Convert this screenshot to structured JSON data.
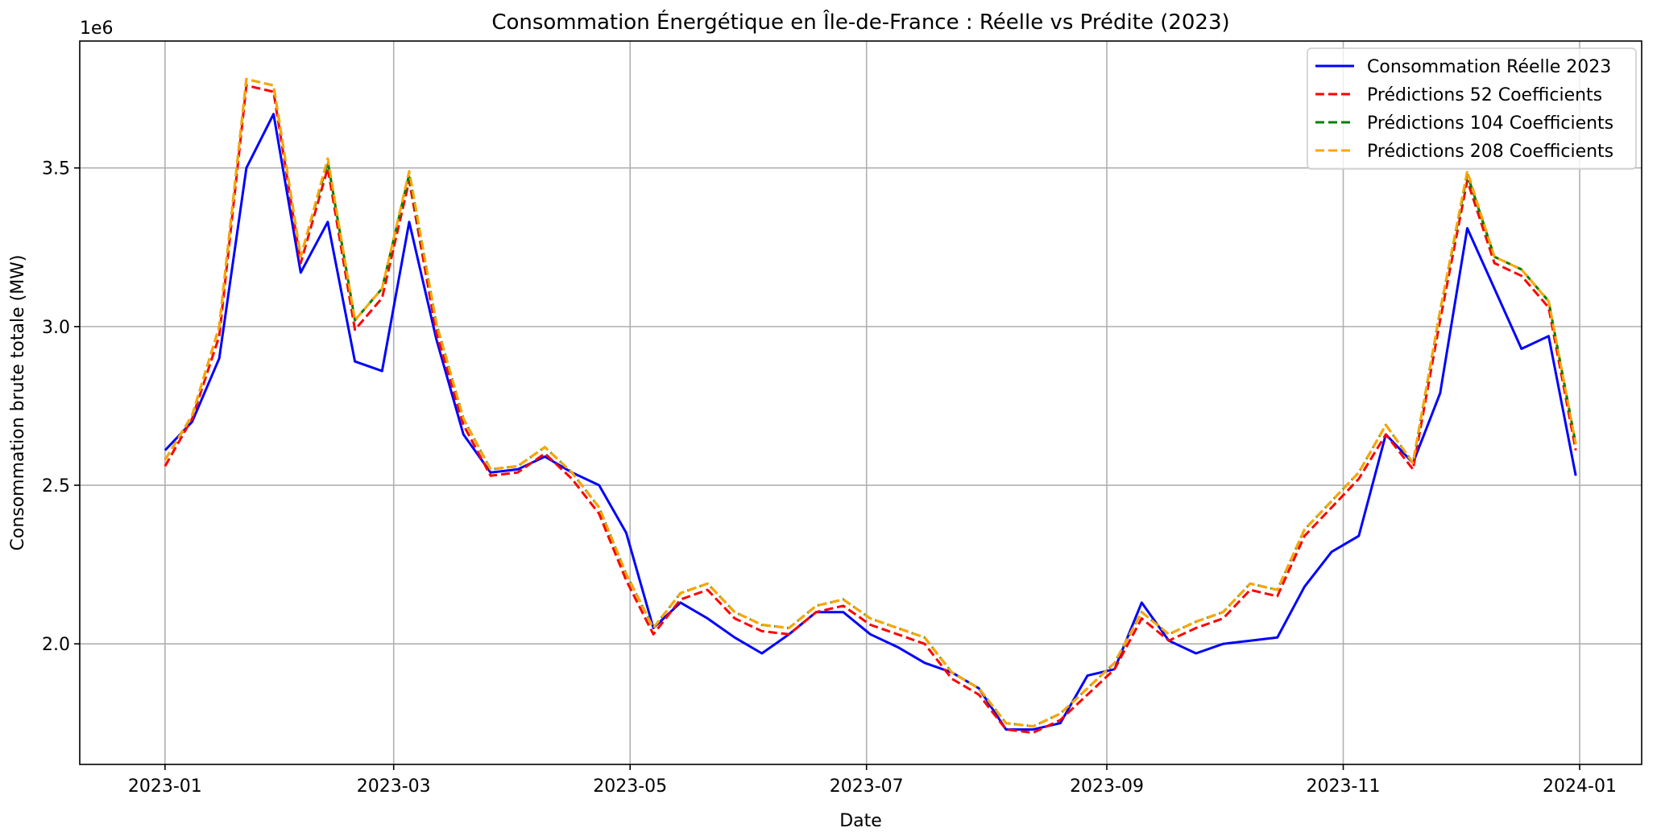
{
  "chart_data": {
    "type": "line",
    "title": "Consommation Énergétique en Île-de-France : Réelle vs Prédite (2023)",
    "xlabel": "Date",
    "ylabel": "Consommation brute totale (MW)",
    "y_offset_text": "1e6",
    "y_scale_factor": 1000000,
    "ylim": [
      1.62,
      3.9
    ],
    "xlim": [
      "2022-12-10",
      "2024-01-17"
    ],
    "grid": true,
    "legend_position": "top-right",
    "x_ticks": [
      {
        "date": "2023-01-01",
        "label": "2023-01"
      },
      {
        "date": "2023-03-01",
        "label": "2023-03"
      },
      {
        "date": "2023-05-01",
        "label": "2023-05"
      },
      {
        "date": "2023-07-01",
        "label": "2023-07"
      },
      {
        "date": "2023-09-01",
        "label": "2023-09"
      },
      {
        "date": "2023-11-01",
        "label": "2023-11"
      },
      {
        "date": "2024-01-01",
        "label": "2024-01"
      }
    ],
    "y_ticks": [
      {
        "value": 2.0,
        "label": "2.0"
      },
      {
        "value": 2.5,
        "label": "2.5"
      },
      {
        "value": 3.0,
        "label": "3.0"
      },
      {
        "value": 3.5,
        "label": "3.5"
      }
    ],
    "x": [
      "2023-01-01",
      "2023-01-08",
      "2023-01-15",
      "2023-01-22",
      "2023-01-29",
      "2023-02-05",
      "2023-02-12",
      "2023-02-19",
      "2023-02-26",
      "2023-03-05",
      "2023-03-12",
      "2023-03-19",
      "2023-03-26",
      "2023-04-02",
      "2023-04-09",
      "2023-04-16",
      "2023-04-23",
      "2023-04-30",
      "2023-05-07",
      "2023-05-14",
      "2023-05-21",
      "2023-05-28",
      "2023-06-04",
      "2023-06-11",
      "2023-06-18",
      "2023-06-25",
      "2023-07-02",
      "2023-07-09",
      "2023-07-16",
      "2023-07-23",
      "2023-07-30",
      "2023-08-06",
      "2023-08-13",
      "2023-08-20",
      "2023-08-27",
      "2023-09-03",
      "2023-09-10",
      "2023-09-17",
      "2023-09-24",
      "2023-10-01",
      "2023-10-08",
      "2023-10-15",
      "2023-10-22",
      "2023-10-29",
      "2023-11-05",
      "2023-11-12",
      "2023-11-19",
      "2023-11-26",
      "2023-12-03",
      "2023-12-10",
      "2023-12-17",
      "2023-12-24",
      "2023-12-31"
    ],
    "series": [
      {
        "name": "Consommation Réelle 2023",
        "color": "#0000ff",
        "dash": "solid",
        "values": [
          2.61,
          2.7,
          2.9,
          3.5,
          3.67,
          3.17,
          3.33,
          2.89,
          2.86,
          3.33,
          2.96,
          2.66,
          2.54,
          2.55,
          2.59,
          2.54,
          2.5,
          2.35,
          2.05,
          2.13,
          2.08,
          2.02,
          1.97,
          2.03,
          2.1,
          2.1,
          2.03,
          1.99,
          1.94,
          1.91,
          1.86,
          1.73,
          1.73,
          1.75,
          1.9,
          1.92,
          2.13,
          2.01,
          1.97,
          2.0,
          2.01,
          2.02,
          2.18,
          2.29,
          2.34,
          2.66,
          2.57,
          2.79,
          3.31,
          3.12,
          2.93,
          2.97,
          2.53
        ]
      },
      {
        "name": "Prédictions 52 Coefficients",
        "color": "#ff0000",
        "dash": "dashed",
        "values": [
          2.56,
          2.71,
          2.97,
          3.76,
          3.74,
          3.2,
          3.5,
          2.99,
          3.09,
          3.46,
          2.98,
          2.69,
          2.53,
          2.54,
          2.6,
          2.52,
          2.41,
          2.2,
          2.03,
          2.14,
          2.17,
          2.08,
          2.04,
          2.03,
          2.1,
          2.12,
          2.06,
          2.03,
          2.0,
          1.89,
          1.84,
          1.73,
          1.72,
          1.76,
          1.84,
          1.92,
          2.08,
          2.01,
          2.05,
          2.08,
          2.17,
          2.15,
          2.34,
          2.43,
          2.52,
          2.66,
          2.55,
          3.02,
          3.46,
          3.2,
          3.16,
          3.06,
          2.61
        ]
      },
      {
        "name": "Prédictions 104 Coefficients",
        "color": "#008000",
        "dash": "dashed",
        "values": [
          2.58,
          2.72,
          3.0,
          3.78,
          3.76,
          3.22,
          3.52,
          3.02,
          3.12,
          3.48,
          3.01,
          2.71,
          2.55,
          2.56,
          2.62,
          2.54,
          2.43,
          2.22,
          2.05,
          2.16,
          2.19,
          2.1,
          2.06,
          2.05,
          2.12,
          2.14,
          2.08,
          2.05,
          2.02,
          1.91,
          1.86,
          1.75,
          1.74,
          1.78,
          1.86,
          1.94,
          2.1,
          2.03,
          2.07,
          2.1,
          2.19,
          2.17,
          2.36,
          2.45,
          2.54,
          2.69,
          2.57,
          3.05,
          3.48,
          3.22,
          3.18,
          3.08,
          2.63
        ]
      },
      {
        "name": "Prédictions 208 Coefficients",
        "color": "#ffa500",
        "dash": "dashed",
        "values": [
          2.58,
          2.72,
          3.0,
          3.78,
          3.76,
          3.22,
          3.53,
          3.02,
          3.12,
          3.49,
          3.01,
          2.71,
          2.55,
          2.56,
          2.62,
          2.54,
          2.43,
          2.22,
          2.05,
          2.16,
          2.19,
          2.1,
          2.06,
          2.05,
          2.12,
          2.14,
          2.08,
          2.05,
          2.02,
          1.91,
          1.86,
          1.75,
          1.74,
          1.78,
          1.86,
          1.94,
          2.1,
          2.03,
          2.07,
          2.1,
          2.19,
          2.17,
          2.36,
          2.45,
          2.54,
          2.69,
          2.57,
          3.05,
          3.49,
          3.22,
          3.18,
          3.08,
          2.63
        ]
      }
    ]
  }
}
